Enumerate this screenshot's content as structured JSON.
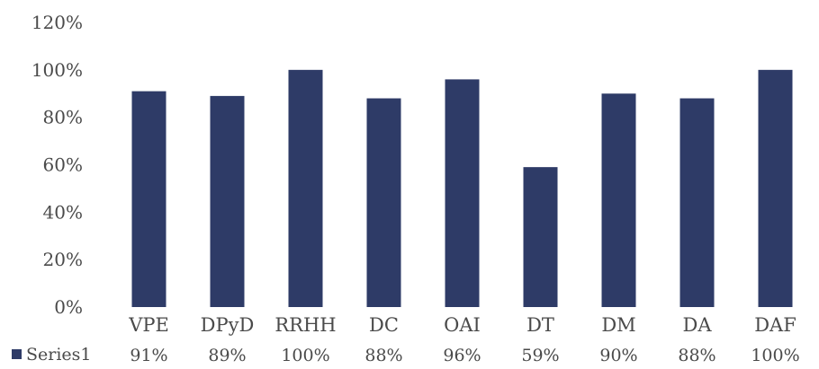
{
  "chart_data": {
    "type": "bar",
    "categories": [
      "VPE",
      "DPyD",
      "RRHH",
      "DC",
      "OAI",
      "DT",
      "DM",
      "DA",
      "DAF"
    ],
    "series": [
      {
        "name": "Series1",
        "values": [
          91,
          89,
          100,
          88,
          96,
          59,
          90,
          88,
          100
        ],
        "value_labels": [
          "91%",
          "89%",
          "100%",
          "88%",
          "96%",
          "59%",
          "90%",
          "88%",
          "100%"
        ],
        "color": "#2e3b67"
      }
    ],
    "ylim": [
      0,
      120
    ],
    "yticks": [
      0,
      20,
      40,
      60,
      80,
      100,
      120
    ],
    "ytick_labels": [
      "0%",
      "20%",
      "40%",
      "60%",
      "80%",
      "100%",
      "120%"
    ],
    "grid": false,
    "legend": "bottom-left (data table)",
    "title": "",
    "xlabel": "",
    "ylabel": ""
  }
}
